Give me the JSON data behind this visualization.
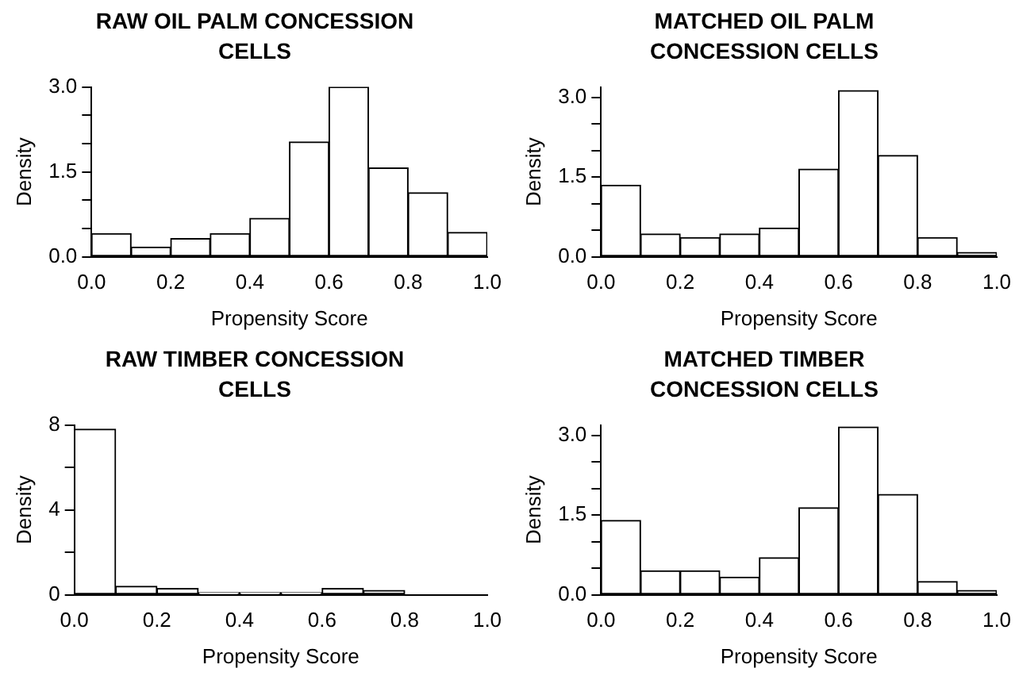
{
  "chart_data": [
    {
      "type": "histogram",
      "title": "RAW OIL PALM CONCESSION CELLS",
      "xlabel": "Propensity Score",
      "ylabel": "Density",
      "color": "#ffffff",
      "bins": [
        0,
        0.1,
        0.2,
        0.3,
        0.4,
        0.5,
        0.6,
        0.7,
        0.8,
        0.9,
        1.0
      ],
      "values": [
        0.41,
        0.17,
        0.32,
        0.41,
        0.68,
        2.03,
        3.0,
        1.57,
        1.13,
        0.43
      ],
      "xlim": [
        0,
        1
      ],
      "xticks": [
        {
          "value": 0,
          "label": "0.0"
        },
        {
          "value": 0.2,
          "label": "0.2"
        },
        {
          "value": 0.4,
          "label": "0.4"
        },
        {
          "value": 0.6,
          "label": "0.6"
        },
        {
          "value": 0.8,
          "label": "0.8"
        },
        {
          "value": 1,
          "label": "1.0"
        }
      ],
      "ylim": [
        0,
        3.0
      ],
      "yticks": [
        {
          "value": 0,
          "label": "0.0"
        },
        {
          "value": 0.5,
          "label": null
        },
        {
          "value": 1,
          "label": null
        },
        {
          "value": 1.5,
          "label": "1.5"
        },
        {
          "value": 2,
          "label": null
        },
        {
          "value": 2.5,
          "label": null
        },
        {
          "value": 3,
          "label": "3.0"
        }
      ],
      "grid": false
    },
    {
      "type": "histogram",
      "title": "MATCHED OIL PALM CONCESSION CELLS",
      "xlabel": "Propensity Score",
      "ylabel": "Density",
      "color": "#ffffff",
      "bins": [
        0,
        0.1,
        0.2,
        0.3,
        0.4,
        0.5,
        0.6,
        0.7,
        0.8,
        0.9,
        1.0
      ],
      "values": [
        1.35,
        0.43,
        0.36,
        0.43,
        0.54,
        1.65,
        3.13,
        1.91,
        0.36,
        0.08
      ],
      "xlim": [
        0,
        1
      ],
      "xticks": [
        {
          "value": 0,
          "label": "0.0"
        },
        {
          "value": 0.2,
          "label": "0.2"
        },
        {
          "value": 0.4,
          "label": "0.4"
        },
        {
          "value": 0.6,
          "label": "0.6"
        },
        {
          "value": 0.8,
          "label": "0.8"
        },
        {
          "value": 1,
          "label": "1.0"
        }
      ],
      "ylim": [
        0,
        3.2
      ],
      "yticks": [
        {
          "value": 0,
          "label": "0.0"
        },
        {
          "value": 0.5,
          "label": null
        },
        {
          "value": 1,
          "label": null
        },
        {
          "value": 1.5,
          "label": "1.5"
        },
        {
          "value": 2,
          "label": null
        },
        {
          "value": 2.5,
          "label": null
        },
        {
          "value": 3,
          "label": "3.0"
        }
      ],
      "grid": false
    },
    {
      "type": "histogram",
      "title": "RAW TIMBER CONCESSION CELLS",
      "xlabel": "Propensity Score",
      "ylabel": "Density",
      "color": "#ffffff",
      "bins": [
        0,
        0.1,
        0.2,
        0.3,
        0.4,
        0.5,
        0.6,
        0.7,
        0.8,
        0.9,
        1.0
      ],
      "values": [
        7.8,
        0.4,
        0.3,
        0.1,
        0.1,
        0.1,
        0.3,
        0.2,
        null,
        null
      ],
      "xlim": [
        0,
        1
      ],
      "xticks": [
        {
          "value": 0,
          "label": "0.0"
        },
        {
          "value": 0.2,
          "label": "0.2"
        },
        {
          "value": 0.4,
          "label": "0.4"
        },
        {
          "value": 0.6,
          "label": "0.6"
        },
        {
          "value": 0.8,
          "label": "0.8"
        },
        {
          "value": 1,
          "label": "1.0"
        }
      ],
      "ylim": [
        0,
        8
      ],
      "yticks": [
        0,
        {
          "value": 2,
          "label": null
        },
        4,
        {
          "value": 6,
          "label": null
        },
        8
      ],
      "grid": false
    },
    {
      "type": "histogram",
      "title": "MATCHED TIMBER CONCESSION CELLS",
      "xlabel": "Propensity Score",
      "ylabel": "Density",
      "color": "#ffffff",
      "bins": [
        0,
        0.1,
        0.2,
        0.3,
        0.4,
        0.5,
        0.6,
        0.7,
        0.8,
        0.9,
        1.0
      ],
      "values": [
        1.4,
        0.45,
        0.45,
        0.33,
        0.7,
        1.64,
        3.16,
        1.89,
        0.25,
        0.08
      ],
      "xlim": [
        0,
        1
      ],
      "xticks": [
        {
          "value": 0,
          "label": "0.0"
        },
        {
          "value": 0.2,
          "label": "0.2"
        },
        {
          "value": 0.4,
          "label": "0.4"
        },
        {
          "value": 0.6,
          "label": "0.6"
        },
        {
          "value": 0.8,
          "label": "0.8"
        },
        {
          "value": 1,
          "label": "1.0"
        }
      ],
      "ylim": [
        0,
        3.2
      ],
      "yticks": [
        {
          "value": 0,
          "label": "0.0"
        },
        {
          "value": 0.5,
          "label": null
        },
        {
          "value": 1,
          "label": null
        },
        {
          "value": 1.5,
          "label": "1.5"
        },
        {
          "value": 2,
          "label": null
        },
        {
          "value": 2.5,
          "label": null
        },
        {
          "value": 3,
          "label": "3.0"
        }
      ],
      "grid": false
    }
  ]
}
